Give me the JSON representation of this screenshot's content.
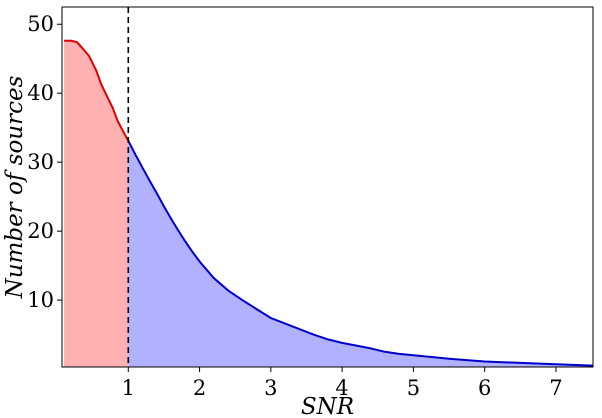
{
  "chart_data": {
    "type": "area",
    "title": "",
    "xlabel": "SNR",
    "ylabel": "Number of sources",
    "xlim": [
      0.07,
      7.52
    ],
    "ylim": [
      0.3,
      52.5
    ],
    "xticks": [
      1,
      2,
      3,
      4,
      5,
      6,
      7
    ],
    "yticks": [
      10,
      20,
      30,
      40,
      50
    ],
    "grid": false,
    "threshold": {
      "x": 1.0,
      "style": "dashed",
      "color": "#000000"
    },
    "series": [
      {
        "color": "#dd0000",
        "fill": "#ffb1b1",
        "x": [
          0.1,
          0.2,
          0.28,
          0.35,
          0.45,
          0.55,
          0.62,
          0.7,
          0.78,
          0.85,
          0.92,
          1.0
        ],
        "y": [
          47.6,
          47.6,
          47.4,
          46.6,
          45.4,
          43.3,
          41.3,
          39.6,
          37.9,
          36.0,
          34.6,
          33.1
        ]
      },
      {
        "color": "#0000cc",
        "fill": "#b1b1ff",
        "x": [
          1.0,
          1.1,
          1.2,
          1.3,
          1.4,
          1.5,
          1.6,
          1.7,
          1.8,
          1.9,
          2.0,
          2.2,
          2.4,
          2.6,
          2.8,
          3.0,
          3.2,
          3.4,
          3.6,
          3.8,
          4.0,
          4.2,
          4.4,
          4.6,
          4.8,
          5.0,
          5.5,
          6.0,
          6.5,
          7.0,
          7.52
        ],
        "y": [
          33.1,
          31.1,
          29.2,
          27.3,
          25.5,
          23.6,
          21.8,
          20.1,
          18.5,
          17.0,
          15.6,
          13.2,
          11.4,
          10.0,
          8.7,
          7.4,
          6.6,
          5.8,
          5.0,
          4.3,
          3.8,
          3.4,
          3.0,
          2.5,
          2.2,
          2.0,
          1.5,
          1.1,
          0.9,
          0.7,
          0.5
        ]
      }
    ]
  }
}
